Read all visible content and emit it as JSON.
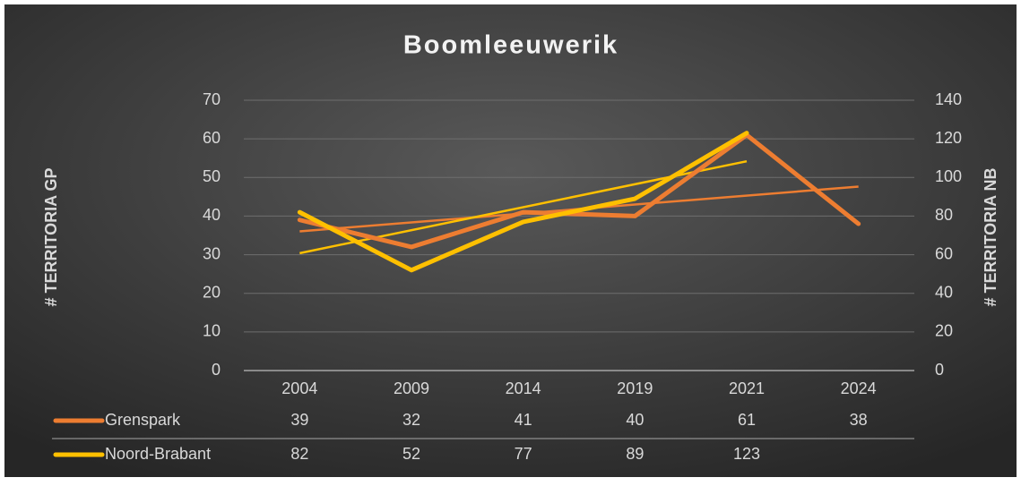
{
  "chart_data": {
    "type": "line",
    "title": "Boomleeuwerik",
    "categories": [
      "2004",
      "2009",
      "2014",
      "2019",
      "2021",
      "2024"
    ],
    "series": [
      {
        "name": "Grenspark",
        "color": "#ED7D31",
        "values": [
          39,
          32,
          41,
          40,
          61,
          38
        ],
        "axis": "y"
      },
      {
        "name": "Noord-Brabant",
        "color": "#FFC000",
        "values": [
          82,
          52,
          77,
          89,
          123,
          null
        ],
        "axis": "y2"
      }
    ],
    "ylabel": "# TERRITORIA GP",
    "y2label": "# TERRITORIA NB",
    "ylim": [
      0,
      70
    ],
    "yticks": [
      0,
      10,
      20,
      30,
      40,
      50,
      60,
      70
    ],
    "y2lim": [
      0,
      140
    ],
    "y2ticks": [
      0,
      20,
      40,
      60,
      80,
      100,
      120,
      140
    ],
    "grid": true,
    "trendline": "linear",
    "data_table": true
  }
}
